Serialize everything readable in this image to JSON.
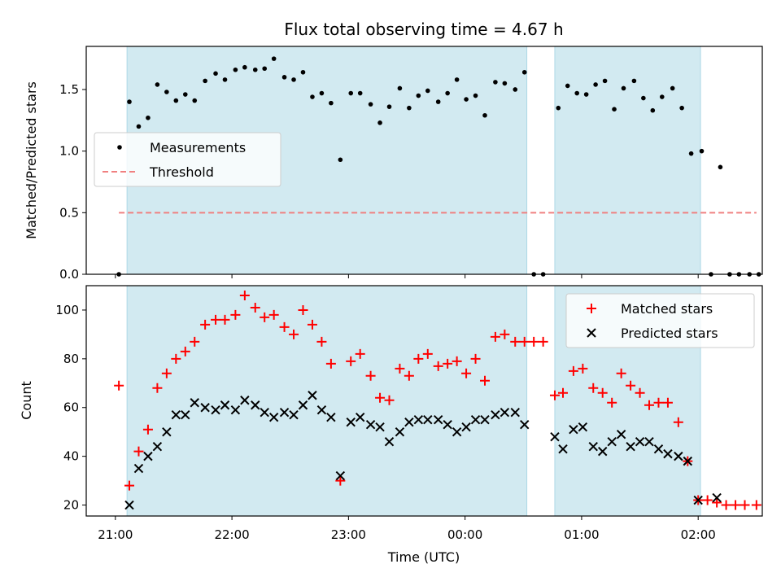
{
  "chart_data": {
    "type": "scatter",
    "title": "Flux total observing time = 4.67 h",
    "xlabel": "Time (UTC)",
    "x_unit": "hours since 21:00 UTC",
    "xlim": [
      -0.25,
      5.55
    ],
    "x_ticks": [
      {
        "value": 0,
        "label": "21:00"
      },
      {
        "value": 1,
        "label": "22:00"
      },
      {
        "value": 2,
        "label": "23:00"
      },
      {
        "value": 3,
        "label": "00:00"
      },
      {
        "value": 4,
        "label": "01:00"
      },
      {
        "value": 5,
        "label": "02:00"
      }
    ],
    "shaded_intervals": [
      [
        0.1,
        3.53
      ],
      [
        3.77,
        5.02
      ]
    ],
    "top": {
      "ylabel": "Matched/Predicted stars",
      "ylim": [
        0,
        1.85
      ],
      "y_ticks": [
        0.0,
        0.5,
        1.0,
        1.5
      ],
      "y_tick_labels": [
        "0.0",
        "0.5",
        "1.0",
        "1.5"
      ],
      "threshold": {
        "value": 0.5,
        "x_range": [
          0.03,
          5.5
        ],
        "label": "Threshold"
      },
      "legend": [
        "Measurements",
        "Threshold"
      ],
      "measurements": [
        [
          0.03,
          0.0
        ],
        [
          0.12,
          1.4
        ],
        [
          0.2,
          1.2
        ],
        [
          0.28,
          1.27
        ],
        [
          0.36,
          1.54
        ],
        [
          0.44,
          1.48
        ],
        [
          0.52,
          1.41
        ],
        [
          0.6,
          1.46
        ],
        [
          0.68,
          1.41
        ],
        [
          0.77,
          1.57
        ],
        [
          0.86,
          1.63
        ],
        [
          0.94,
          1.58
        ],
        [
          1.03,
          1.66
        ],
        [
          1.11,
          1.68
        ],
        [
          1.2,
          1.66
        ],
        [
          1.28,
          1.67
        ],
        [
          1.36,
          1.75
        ],
        [
          1.45,
          1.6
        ],
        [
          1.53,
          1.58
        ],
        [
          1.61,
          1.64
        ],
        [
          1.69,
          1.44
        ],
        [
          1.77,
          1.47
        ],
        [
          1.85,
          1.39
        ],
        [
          1.93,
          0.93
        ],
        [
          2.02,
          1.47
        ],
        [
          2.1,
          1.47
        ],
        [
          2.19,
          1.38
        ],
        [
          2.27,
          1.23
        ],
        [
          2.35,
          1.36
        ],
        [
          2.44,
          1.51
        ],
        [
          2.52,
          1.35
        ],
        [
          2.6,
          1.45
        ],
        [
          2.68,
          1.49
        ],
        [
          2.77,
          1.4
        ],
        [
          2.85,
          1.47
        ],
        [
          2.93,
          1.58
        ],
        [
          3.01,
          1.42
        ],
        [
          3.09,
          1.45
        ],
        [
          3.17,
          1.29
        ],
        [
          3.26,
          1.56
        ],
        [
          3.34,
          1.55
        ],
        [
          3.43,
          1.5
        ],
        [
          3.51,
          1.64
        ],
        [
          3.59,
          0.0
        ],
        [
          3.67,
          0.0
        ],
        [
          3.8,
          1.35
        ],
        [
          3.88,
          1.53
        ],
        [
          3.96,
          1.47
        ],
        [
          4.04,
          1.46
        ],
        [
          4.12,
          1.54
        ],
        [
          4.2,
          1.57
        ],
        [
          4.28,
          1.34
        ],
        [
          4.36,
          1.51
        ],
        [
          4.45,
          1.57
        ],
        [
          4.53,
          1.43
        ],
        [
          4.61,
          1.33
        ],
        [
          4.69,
          1.44
        ],
        [
          4.78,
          1.51
        ],
        [
          4.86,
          1.35
        ],
        [
          4.94,
          0.98
        ],
        [
          5.03,
          1.0
        ],
        [
          5.11,
          0.0
        ],
        [
          5.19,
          0.87
        ],
        [
          5.27,
          0.0
        ],
        [
          5.35,
          0.0
        ],
        [
          5.44,
          0.0
        ],
        [
          5.52,
          0.0
        ]
      ]
    },
    "bottom": {
      "ylabel": "Count",
      "ylim": [
        15.5,
        110
      ],
      "y_ticks": [
        20,
        40,
        60,
        80,
        100
      ],
      "legend": [
        "Matched stars",
        "Predicted stars"
      ],
      "matched": [
        [
          0.03,
          69
        ],
        [
          0.12,
          28
        ],
        [
          0.2,
          42
        ],
        [
          0.28,
          51
        ],
        [
          0.36,
          68
        ],
        [
          0.44,
          74
        ],
        [
          0.52,
          80
        ],
        [
          0.6,
          83
        ],
        [
          0.68,
          87
        ],
        [
          0.77,
          94
        ],
        [
          0.86,
          96
        ],
        [
          0.94,
          96
        ],
        [
          1.03,
          98
        ],
        [
          1.11,
          106
        ],
        [
          1.2,
          101
        ],
        [
          1.28,
          97
        ],
        [
          1.36,
          98
        ],
        [
          1.45,
          93
        ],
        [
          1.53,
          90
        ],
        [
          1.61,
          100
        ],
        [
          1.69,
          94
        ],
        [
          1.77,
          87
        ],
        [
          1.85,
          78
        ],
        [
          1.93,
          30
        ],
        [
          2.02,
          79
        ],
        [
          2.1,
          82
        ],
        [
          2.19,
          73
        ],
        [
          2.27,
          64
        ],
        [
          2.35,
          63
        ],
        [
          2.44,
          76
        ],
        [
          2.52,
          73
        ],
        [
          2.6,
          80
        ],
        [
          2.68,
          82
        ],
        [
          2.77,
          77
        ],
        [
          2.85,
          78
        ],
        [
          2.93,
          79
        ],
        [
          3.01,
          74
        ],
        [
          3.09,
          80
        ],
        [
          3.17,
          71
        ],
        [
          3.26,
          89
        ],
        [
          3.34,
          90
        ],
        [
          3.43,
          87
        ],
        [
          3.51,
          87
        ],
        [
          3.59,
          87
        ],
        [
          3.67,
          87
        ],
        [
          3.77,
          65
        ],
        [
          3.84,
          66
        ],
        [
          3.93,
          75
        ],
        [
          4.01,
          76
        ],
        [
          4.1,
          68
        ],
        [
          4.18,
          66
        ],
        [
          4.26,
          62
        ],
        [
          4.34,
          74
        ],
        [
          4.42,
          69
        ],
        [
          4.5,
          66
        ],
        [
          4.58,
          61
        ],
        [
          4.66,
          62
        ],
        [
          4.74,
          62
        ],
        [
          4.83,
          54
        ],
        [
          4.91,
          38
        ],
        [
          5.0,
          22
        ],
        [
          5.08,
          22
        ],
        [
          5.16,
          21
        ],
        [
          5.24,
          20
        ],
        [
          5.32,
          20
        ],
        [
          5.4,
          20
        ],
        [
          5.5,
          20
        ]
      ],
      "predicted": [
        [
          0.12,
          20
        ],
        [
          0.2,
          35
        ],
        [
          0.28,
          40
        ],
        [
          0.36,
          44
        ],
        [
          0.44,
          50
        ],
        [
          0.52,
          57
        ],
        [
          0.6,
          57
        ],
        [
          0.68,
          62
        ],
        [
          0.77,
          60
        ],
        [
          0.86,
          59
        ],
        [
          0.94,
          61
        ],
        [
          1.03,
          59
        ],
        [
          1.11,
          63
        ],
        [
          1.2,
          61
        ],
        [
          1.28,
          58
        ],
        [
          1.36,
          56
        ],
        [
          1.45,
          58
        ],
        [
          1.53,
          57
        ],
        [
          1.61,
          61
        ],
        [
          1.69,
          65
        ],
        [
          1.77,
          59
        ],
        [
          1.85,
          56
        ],
        [
          1.93,
          32
        ],
        [
          2.02,
          54
        ],
        [
          2.1,
          56
        ],
        [
          2.19,
          53
        ],
        [
          2.27,
          52
        ],
        [
          2.35,
          46
        ],
        [
          2.44,
          50
        ],
        [
          2.52,
          54
        ],
        [
          2.6,
          55
        ],
        [
          2.68,
          55
        ],
        [
          2.77,
          55
        ],
        [
          2.85,
          53
        ],
        [
          2.93,
          50
        ],
        [
          3.01,
          52
        ],
        [
          3.09,
          55
        ],
        [
          3.17,
          55
        ],
        [
          3.26,
          57
        ],
        [
          3.34,
          58
        ],
        [
          3.43,
          58
        ],
        [
          3.51,
          53
        ],
        [
          3.77,
          48
        ],
        [
          3.84,
          43
        ],
        [
          3.93,
          51
        ],
        [
          4.01,
          52
        ],
        [
          4.1,
          44
        ],
        [
          4.18,
          42
        ],
        [
          4.26,
          46
        ],
        [
          4.34,
          49
        ],
        [
          4.42,
          44
        ],
        [
          4.5,
          46
        ],
        [
          4.58,
          46
        ],
        [
          4.66,
          43
        ],
        [
          4.74,
          41
        ],
        [
          4.83,
          40
        ],
        [
          4.91,
          38
        ],
        [
          5.0,
          22
        ],
        [
          5.16,
          23
        ]
      ]
    },
    "colors": {
      "shade": "#add8e6",
      "measurement": "#000000",
      "threshold": "#f08080",
      "matched": "#ff0000",
      "predicted": "#000000"
    }
  }
}
